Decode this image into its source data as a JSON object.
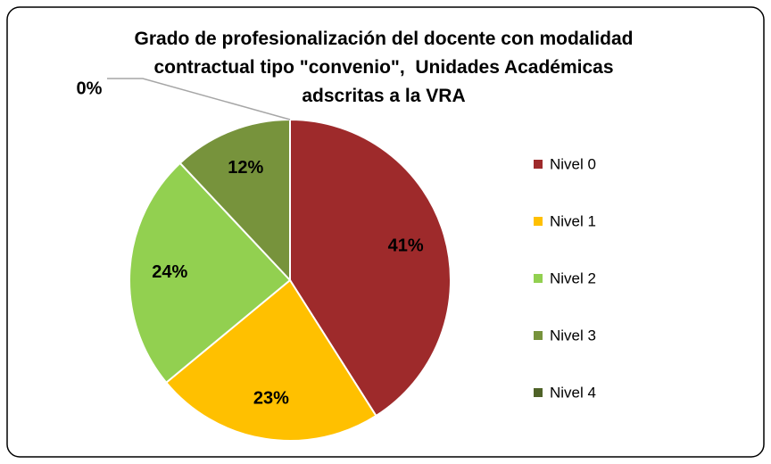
{
  "chart_data": {
    "type": "pie",
    "title": "Grado de profesionalización del docente con modalidad\ncontractual tipo \"convenio\",  Unidades Académicas\nadscritas a la VRA",
    "categories": [
      "Nivel 0",
      "Nivel 1",
      "Nivel 2",
      "Nivel 3",
      "Nivel 4"
    ],
    "values": [
      41,
      23,
      24,
      12,
      0
    ],
    "value_labels": [
      "41%",
      "23%",
      "24%",
      "12%",
      "0%"
    ],
    "colors": [
      "#9e2a2b",
      "#ffc000",
      "#92d050",
      "#77933c",
      "#4f6228"
    ],
    "legend": "right"
  }
}
